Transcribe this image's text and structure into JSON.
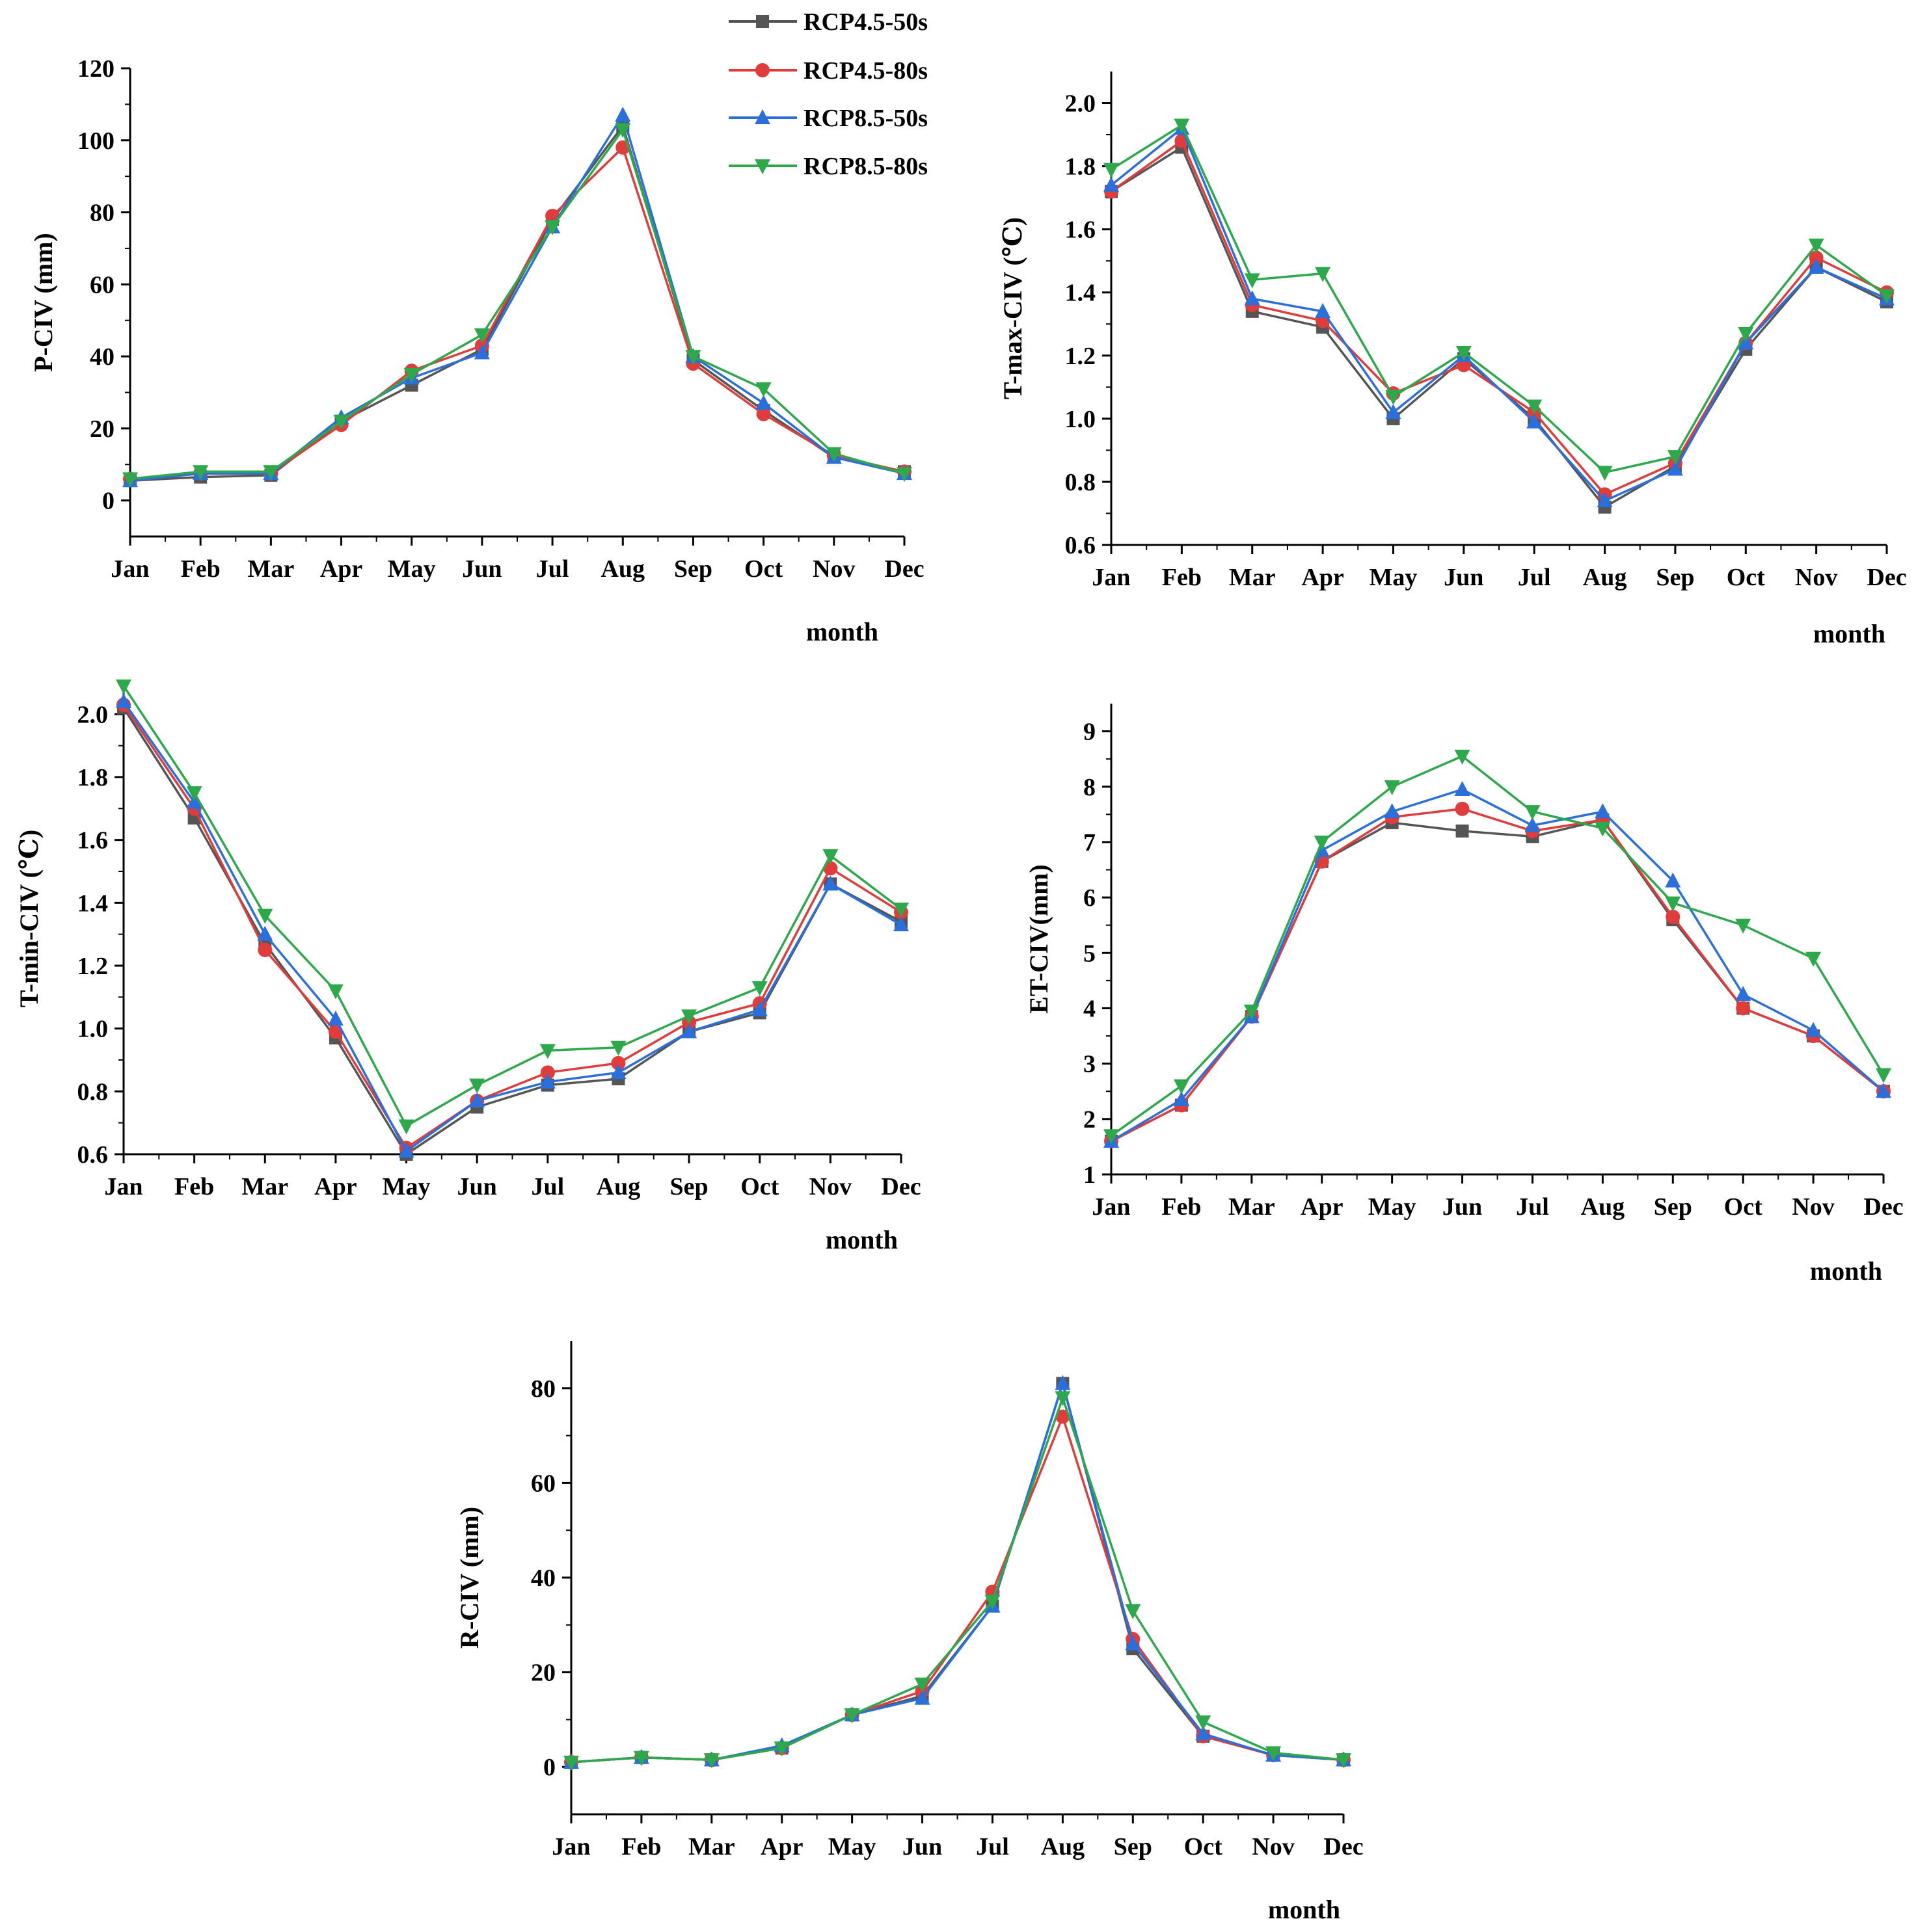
{
  "legend": [
    {
      "name": "RCP4.5-50s",
      "color": "#555555",
      "marker": "square"
    },
    {
      "name": "RCP4.5-80s",
      "color": "#e03c3c",
      "marker": "circle"
    },
    {
      "name": "RCP8.5-50s",
      "color": "#2a6fdb",
      "marker": "triangle-up"
    },
    {
      "name": "RCP8.5-80s",
      "color": "#2da84b",
      "marker": "triangle-down"
    }
  ],
  "chart_data": [
    {
      "type": "line",
      "id": "p-civ",
      "ylabel": "P-CIV (mm)",
      "xlabel": "month",
      "categories": [
        "Jan",
        "Feb",
        "Mar",
        "Apr",
        "May",
        "Jun",
        "Jul",
        "Aug",
        "Sep",
        "Oct",
        "Nov",
        "Dec"
      ],
      "ylim": [
        -10,
        120
      ],
      "yticks": [
        0,
        20,
        40,
        60,
        80,
        100,
        120
      ],
      "ytick_labels": [
        "0",
        "20",
        "40",
        "60",
        "80",
        "100",
        "120"
      ],
      "series": [
        {
          "name": "RCP4.5-50s",
          "values": [
            5.5,
            6.5,
            7,
            22,
            32,
            42,
            78,
            104,
            39,
            25,
            12,
            8
          ]
        },
        {
          "name": "RCP4.5-80s",
          "values": [
            6,
            7.5,
            7.5,
            21,
            36,
            43,
            79,
            98,
            38,
            24,
            12.5,
            8
          ]
        },
        {
          "name": "RCP8.5-50s",
          "values": [
            5.5,
            7.5,
            7.5,
            23,
            34,
            41,
            76,
            107,
            40,
            27,
            12,
            7.5
          ]
        },
        {
          "name": "RCP8.5-80s",
          "values": [
            6,
            8,
            8,
            22,
            35,
            46,
            76,
            103,
            40,
            31,
            13,
            7.5
          ]
        }
      ]
    },
    {
      "type": "line",
      "id": "t-max-civ",
      "ylabel": "T-max-CIV (℃)",
      "xlabel": "month",
      "categories": [
        "Jan",
        "Feb",
        "Mar",
        "Apr",
        "May",
        "Jun",
        "Jul",
        "Aug",
        "Sep",
        "Oct",
        "Nov",
        "Dec"
      ],
      "ylim": [
        0.6,
        2.1
      ],
      "yticks": [
        0.6,
        0.8,
        1.0,
        1.2,
        1.4,
        1.6,
        1.8,
        2.0
      ],
      "ytick_labels": [
        "0.6",
        "0.8",
        "1.0",
        "1.2",
        "1.4",
        "1.6",
        "1.8",
        "2.0"
      ],
      "series": [
        {
          "name": "RCP4.5-50s",
          "values": [
            1.72,
            1.86,
            1.34,
            1.29,
            1.0,
            1.19,
            1.0,
            0.72,
            0.85,
            1.22,
            1.48,
            1.37
          ]
        },
        {
          "name": "RCP4.5-80s",
          "values": [
            1.72,
            1.88,
            1.36,
            1.31,
            1.08,
            1.17,
            1.02,
            0.76,
            0.86,
            1.24,
            1.51,
            1.4
          ]
        },
        {
          "name": "RCP8.5-50s",
          "values": [
            1.74,
            1.92,
            1.38,
            1.34,
            1.02,
            1.2,
            0.99,
            0.74,
            0.84,
            1.24,
            1.48,
            1.38
          ]
        },
        {
          "name": "RCP8.5-80s",
          "values": [
            1.79,
            1.93,
            1.44,
            1.46,
            1.07,
            1.21,
            1.04,
            0.83,
            0.88,
            1.27,
            1.55,
            1.39
          ]
        }
      ]
    },
    {
      "type": "line",
      "id": "t-min-civ",
      "ylabel": "T-min-CIV (℃)",
      "xlabel": "month",
      "categories": [
        "Jan",
        "Feb",
        "Mar",
        "Apr",
        "May",
        "Jun",
        "Jul",
        "Aug",
        "Sep",
        "Oct",
        "Nov",
        "Dec"
      ],
      "ylim": [
        0.6,
        2.1
      ],
      "yticks": [
        0.6,
        0.8,
        1.0,
        1.2,
        1.4,
        1.6,
        1.8,
        2.0
      ],
      "ytick_labels": [
        "0.6",
        "0.8",
        "1.0",
        "1.2",
        "1.4",
        "1.6",
        "1.8",
        "2.0"
      ],
      "series": [
        {
          "name": "RCP4.5-50s",
          "values": [
            2.02,
            1.67,
            1.27,
            0.97,
            0.6,
            0.75,
            0.82,
            0.84,
            0.99,
            1.05,
            1.46,
            1.34
          ]
        },
        {
          "name": "RCP4.5-80s",
          "values": [
            2.03,
            1.7,
            1.25,
            0.99,
            0.62,
            0.77,
            0.86,
            0.89,
            1.02,
            1.08,
            1.51,
            1.37
          ]
        },
        {
          "name": "RCP8.5-50s",
          "values": [
            2.04,
            1.72,
            1.3,
            1.03,
            0.61,
            0.77,
            0.83,
            0.86,
            0.99,
            1.06,
            1.46,
            1.33
          ]
        },
        {
          "name": "RCP8.5-80s",
          "values": [
            2.09,
            1.75,
            1.36,
            1.12,
            0.69,
            0.82,
            0.93,
            0.94,
            1.04,
            1.13,
            1.55,
            1.38
          ]
        }
      ]
    },
    {
      "type": "line",
      "id": "et-civ",
      "ylabel": "ET-CIV(mm)",
      "xlabel": "month",
      "categories": [
        "Jan",
        "Feb",
        "Mar",
        "Apr",
        "May",
        "Jun",
        "Jul",
        "Aug",
        "Sep",
        "Oct",
        "Nov",
        "Dec"
      ],
      "ylim": [
        1,
        9.5
      ],
      "yticks": [
        1,
        2,
        3,
        4,
        5,
        6,
        7,
        8,
        9
      ],
      "ytick_labels": [
        "1",
        "2",
        "3",
        "4",
        "5",
        "6",
        "7",
        "8",
        "9"
      ],
      "series": [
        {
          "name": "RCP4.5-50s",
          "values": [
            1.6,
            2.25,
            3.85,
            6.65,
            7.35,
            7.2,
            7.1,
            7.4,
            5.6,
            4.0,
            3.5,
            2.5
          ]
        },
        {
          "name": "RCP4.5-80s",
          "values": [
            1.6,
            2.25,
            3.85,
            6.65,
            7.45,
            7.6,
            7.2,
            7.4,
            5.65,
            4.0,
            3.5,
            2.5
          ]
        },
        {
          "name": "RCP8.5-50s",
          "values": [
            1.6,
            2.35,
            3.85,
            6.85,
            7.55,
            7.95,
            7.3,
            7.55,
            6.3,
            4.25,
            3.6,
            2.5
          ]
        },
        {
          "name": "RCP8.5-80s",
          "values": [
            1.7,
            2.6,
            3.95,
            7.0,
            8.0,
            8.55,
            7.55,
            7.25,
            5.9,
            5.5,
            4.9,
            2.8
          ]
        }
      ]
    },
    {
      "type": "line",
      "id": "r-civ",
      "ylabel": "R-CIV (mm)",
      "xlabel": "month",
      "categories": [
        "Jan",
        "Feb",
        "Mar",
        "Apr",
        "May",
        "Jun",
        "Jul",
        "Aug",
        "Sep",
        "Oct",
        "Nov",
        "Dec"
      ],
      "ylim": [
        -10,
        90
      ],
      "yticks": [
        0,
        20,
        40,
        60,
        80
      ],
      "ytick_labels": [
        "0",
        "20",
        "40",
        "60",
        "80"
      ],
      "series": [
        {
          "name": "RCP4.5-50s",
          "values": [
            1,
            2,
            1.5,
            4,
            11,
            15,
            34,
            81,
            25,
            6.5,
            2.5,
            1.5
          ]
        },
        {
          "name": "RCP4.5-80s",
          "values": [
            1,
            2,
            1.5,
            4,
            11,
            16,
            37,
            74,
            27,
            6.5,
            2.5,
            1.5
          ]
        },
        {
          "name": "RCP8.5-50s",
          "values": [
            1,
            2,
            1.5,
            4.5,
            11,
            14.5,
            34,
            81,
            26,
            7,
            2.5,
            1.5
          ]
        },
        {
          "name": "RCP8.5-80s",
          "values": [
            1,
            2,
            1.5,
            4,
            11,
            17.5,
            35,
            78,
            33,
            9.5,
            3,
            1.5
          ]
        }
      ]
    }
  ]
}
